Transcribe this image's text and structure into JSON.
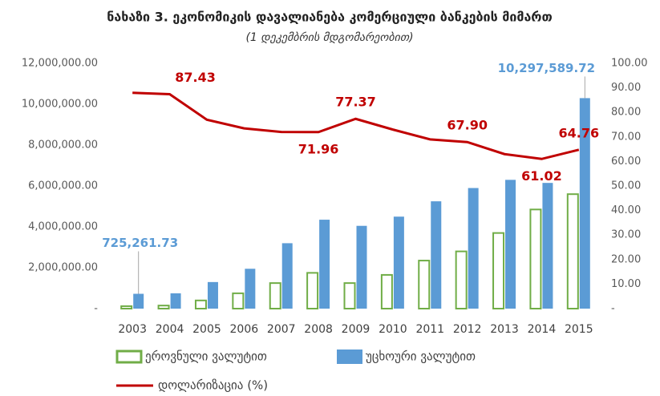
{
  "chart_data": {
    "type": "bar",
    "title": "ნახაზი 3. ეკონომიკის დავალიანება კომერციული ბანკების მიმართ",
    "subtitle": "(1 დეკემბრის მდგომარეობით)",
    "categories": [
      "2003",
      "2004",
      "2005",
      "2006",
      "2007",
      "2008",
      "2009",
      "2010",
      "2011",
      "2012",
      "2013",
      "2014",
      "2015"
    ],
    "series": [
      {
        "name": "ეროვნული ვალუტით",
        "color": "#70ad47",
        "type": "bar",
        "values": [
          120000,
          150000,
          400000,
          750000,
          1250000,
          1750000,
          1250000,
          1650000,
          2350000,
          2800000,
          3700000,
          4850000,
          5600000
        ]
      },
      {
        "name": "უცხოური ვალუტით",
        "color": "#5b9bd5",
        "type": "bar",
        "values": [
          725261.73,
          750000,
          1300000,
          1950000,
          3200000,
          4350000,
          4050000,
          4500000,
          5250000,
          5900000,
          6300000,
          6150000,
          10297589.72
        ],
        "value_labels": [
          "725,261.73",
          null,
          null,
          null,
          null,
          null,
          null,
          null,
          null,
          null,
          null,
          null,
          "10,297,589.72"
        ]
      },
      {
        "name": "დოლარიზაცია (%)",
        "color": "#c00000",
        "type": "line",
        "axis": "y2",
        "values": [
          88,
          87.43,
          77,
          73.5,
          72,
          71.96,
          77.37,
          73,
          69,
          67.9,
          63,
          61.02,
          64.76
        ],
        "value_labels": [
          null,
          "87.43",
          null,
          null,
          null,
          "71.96",
          "77.37",
          null,
          null,
          "67.90",
          null,
          "61.02",
          "64.76"
        ]
      }
    ],
    "ylim": [
      0,
      12000000
    ],
    "yticks": [
      {
        "value": 0,
        "label": "-"
      },
      {
        "value": 2000000,
        "label": "2,000,000.00"
      },
      {
        "value": 4000000,
        "label": "4,000,000.00"
      },
      {
        "value": 6000000,
        "label": "6,000,000.00"
      },
      {
        "value": 8000000,
        "label": "8,000,000.00"
      },
      {
        "value": 10000000,
        "label": "10,000,000.00"
      },
      {
        "value": 12000000,
        "label": "12,000,000.00"
      }
    ],
    "y2lim": [
      0,
      100
    ],
    "y2ticks": [
      {
        "value": 0,
        "label": "-"
      },
      {
        "value": 10,
        "label": "10.00"
      },
      {
        "value": 20,
        "label": "20.00"
      },
      {
        "value": 30,
        "label": "30.00"
      },
      {
        "value": 40,
        "label": "40.00"
      },
      {
        "value": 50,
        "label": "50.00"
      },
      {
        "value": 60,
        "label": "60.00"
      },
      {
        "value": 70,
        "label": "70.00"
      },
      {
        "value": 80,
        "label": "80.00"
      },
      {
        "value": 90,
        "label": "90.00"
      },
      {
        "value": 100,
        "label": "100.00"
      }
    ],
    "legend": "bottom"
  }
}
